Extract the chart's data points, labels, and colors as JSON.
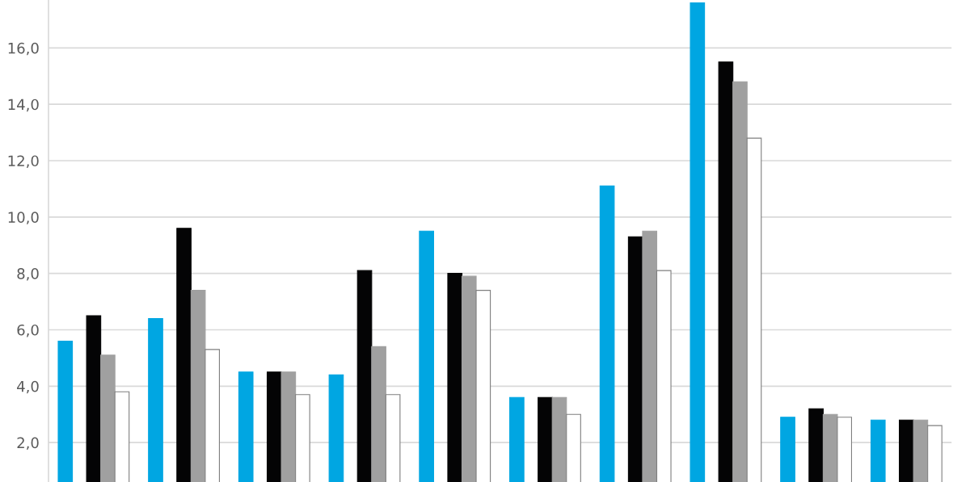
{
  "chart_data": {
    "type": "bar",
    "categories": [
      null,
      null,
      null,
      null,
      null,
      null,
      null,
      null,
      null,
      null
    ],
    "series": [
      {
        "color": "#00a6e2",
        "values": [
          5.6,
          6.4,
          4.5,
          4.4,
          9.5,
          3.6,
          11.1,
          17.6,
          2.9,
          2.8
        ]
      },
      {
        "color": "#040405",
        "values": [
          6.5,
          9.6,
          4.5,
          8.1,
          8.0,
          3.6,
          9.3,
          15.5,
          3.2,
          2.8
        ]
      },
      {
        "color": "#a0a0a0",
        "values": [
          5.1,
          7.4,
          4.5,
          5.4,
          7.9,
          3.6,
          9.5,
          14.8,
          3.0,
          2.8
        ]
      },
      {
        "color": "#ffffff",
        "values": [
          3.8,
          5.3,
          3.7,
          3.7,
          7.4,
          3.0,
          8.1,
          12.8,
          2.9,
          2.6
        ]
      }
    ],
    "ylim": [
      0.6,
      17.7
    ],
    "yticks": [
      {
        "value": 2,
        "label": "2,0"
      },
      {
        "value": 4,
        "label": "4,0"
      },
      {
        "value": 6,
        "label": "6,0"
      },
      {
        "value": 8,
        "label": "8,0"
      },
      {
        "value": 10,
        "label": "10,0"
      },
      {
        "value": 12,
        "label": "12,0"
      },
      {
        "value": 14,
        "label": "14,0"
      },
      {
        "value": 16,
        "label": "16,0"
      }
    ],
    "grid": "y",
    "legend": false
  }
}
